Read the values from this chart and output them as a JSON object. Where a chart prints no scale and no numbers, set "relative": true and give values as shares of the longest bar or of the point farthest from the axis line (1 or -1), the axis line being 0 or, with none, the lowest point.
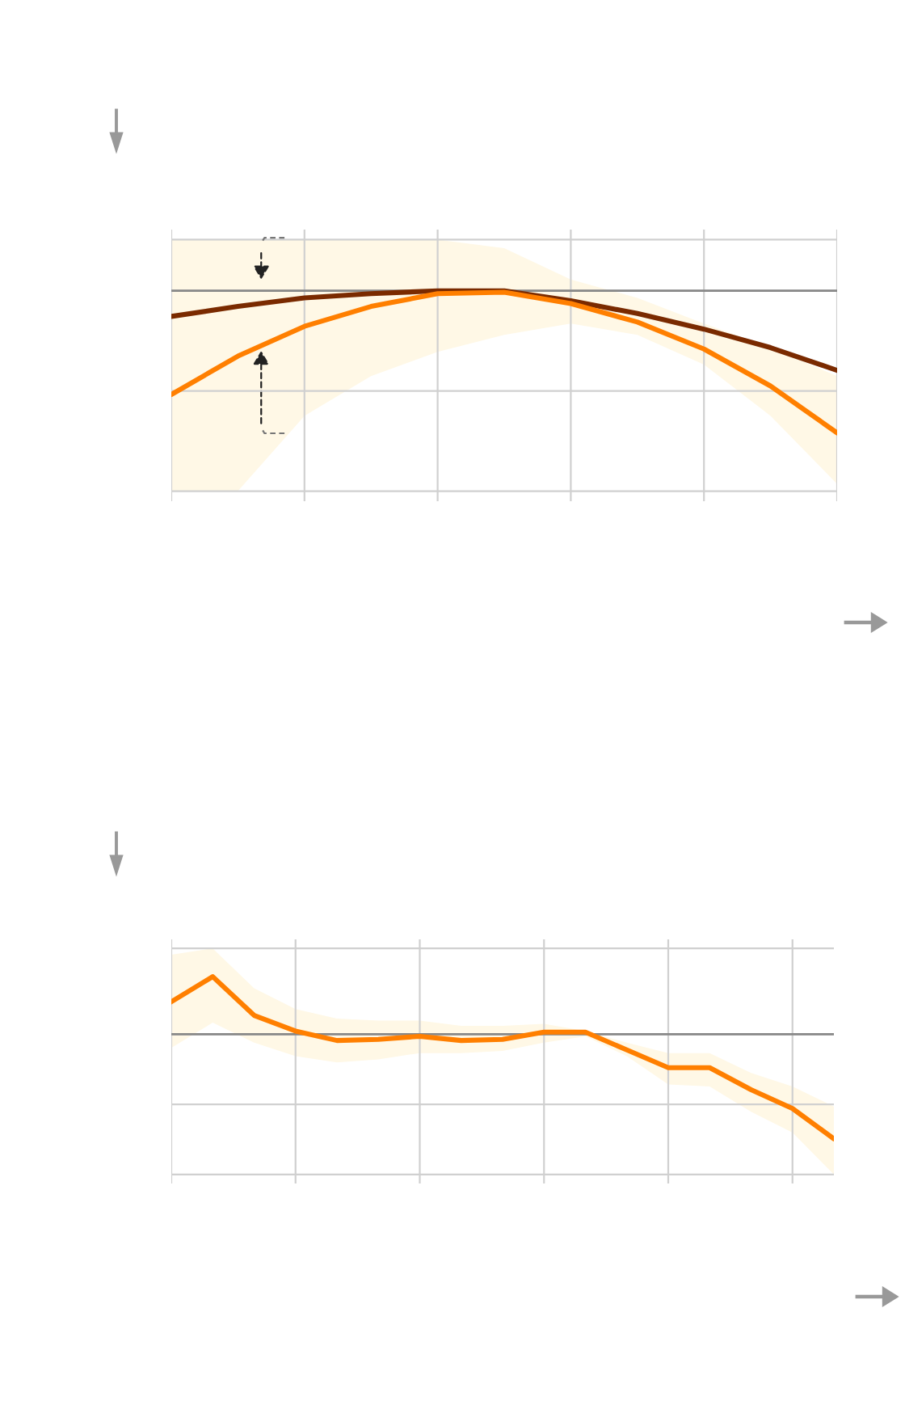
{
  "chart_data": [
    {
      "type": "line",
      "relative": true,
      "grid": true,
      "categories": [
        null,
        null,
        null,
        null,
        null,
        null,
        null,
        null,
        null,
        null,
        null
      ],
      "series": [
        {
          "color": "#7a2a00",
          "values": [
            -0.18,
            -0.11,
            -0.05,
            -0.02,
            0,
            0,
            -0.07,
            -0.16,
            -0.27,
            -0.4,
            -0.56
          ]
        },
        {
          "color": "#ff7f00",
          "values": [
            -0.73,
            -0.46,
            -0.25,
            -0.11,
            -0.02,
            -0.01,
            -0.09,
            -0.22,
            -0.41,
            -0.67,
            -1.0
          ],
          "lower": [
            -1.41,
            -1.41,
            -0.88,
            -0.6,
            -0.43,
            -0.31,
            -0.23,
            -0.31,
            -0.52,
            -0.88,
            -1.36
          ],
          "upper": [
            0.36,
            0.36,
            0.36,
            0.36,
            0.36,
            0.3,
            0.08,
            -0.05,
            -0.23,
            -0.4,
            -0.6
          ]
        }
      ]
    },
    {
      "type": "line",
      "relative": true,
      "grid": true,
      "categories": [
        null,
        null,
        null,
        null,
        null,
        null,
        null,
        null,
        null,
        null,
        null,
        null,
        null,
        null,
        null,
        null,
        null
      ],
      "series": [
        {
          "color": "#ff7f00",
          "values": [
            0.31,
            0.55,
            0.18,
            0.03,
            -0.06,
            -0.05,
            -0.02,
            -0.06,
            -0.05,
            0.02,
            0.02,
            -0.15,
            -0.32,
            -0.32,
            -0.53,
            -0.71,
            -1.0
          ],
          "lower": [
            -0.13,
            0.11,
            -0.08,
            -0.21,
            -0.27,
            -0.24,
            -0.18,
            -0.18,
            -0.16,
            -0.08,
            -0.02,
            -0.21,
            -0.48,
            -0.5,
            -0.74,
            -0.94,
            -1.34
          ],
          "upper": [
            0.76,
            0.82,
            0.44,
            0.24,
            0.15,
            0.13,
            0.13,
            0.08,
            0.08,
            0.1,
            0.03,
            -0.08,
            -0.18,
            -0.18,
            -0.37,
            -0.5,
            -0.69
          ]
        }
      ]
    }
  ]
}
